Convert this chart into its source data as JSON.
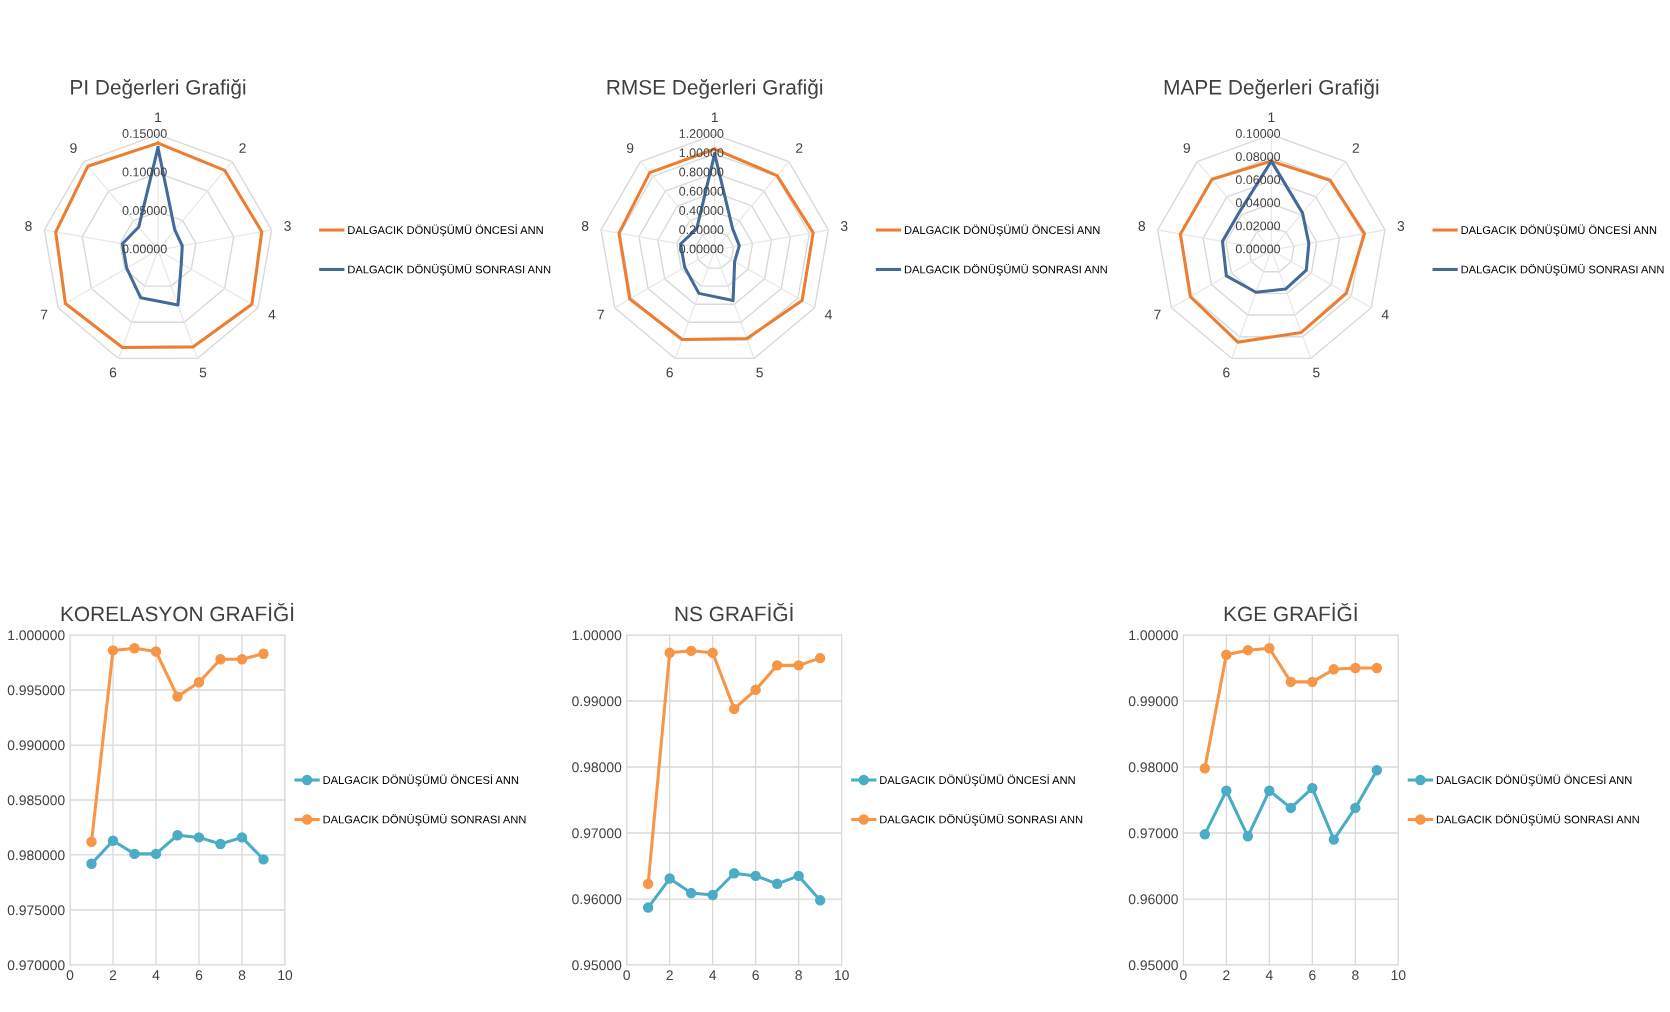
{
  "chart_data": [
    {
      "type": "radar",
      "title": "PI Değerleri Grafiği",
      "categories": [
        "1",
        "2",
        "3",
        "4",
        "5",
        "6",
        "7",
        "8",
        "9"
      ],
      "ylim": [
        0,
        0.15
      ],
      "yticks": [
        {
          "value": 0,
          "label": "0.00000"
        },
        {
          "value": 0.05,
          "label": "0.05000"
        },
        {
          "value": 0.1,
          "label": "0.10000"
        },
        {
          "value": 0.15,
          "label": "0.15000"
        }
      ],
      "legend": "right",
      "series": [
        {
          "name": "DALGACIK DÖNÜŞÜMÜ ÖNCESİ ANN",
          "color": "#ed7d31",
          "values": [
            0.139,
            0.135,
            0.137,
            0.141,
            0.134,
            0.135,
            0.139,
            0.135,
            0.142
          ]
        },
        {
          "name": "DALGACIK DÖNÜŞÜMÜ SONRASI ANN",
          "color": "#44699b",
          "values": [
            0.133,
            0.034,
            0.032,
            0.035,
            0.076,
            0.066,
            0.047,
            0.047,
            0.039
          ]
        }
      ]
    },
    {
      "type": "radar",
      "title": "RMSE Değerleri Grafiği",
      "categories": [
        "1",
        "2",
        "3",
        "4",
        "5",
        "6",
        "7",
        "8",
        "9"
      ],
      "ylim": [
        0,
        1.2
      ],
      "yticks": [
        {
          "value": 0,
          "label": "0.00000"
        },
        {
          "value": 0.2,
          "label": "0.20000"
        },
        {
          "value": 0.4,
          "label": "0.40000"
        },
        {
          "value": 0.6,
          "label": "0.60000"
        },
        {
          "value": 0.8,
          "label": "0.80000"
        },
        {
          "value": 1.0,
          "label": "1.00000"
        },
        {
          "value": 1.2,
          "label": "1.20000"
        }
      ],
      "legend": "right",
      "series": [
        {
          "name": "DALGACIK DÖNÜŞÜMÜ ÖNCESİ ANN",
          "color": "#ed7d31",
          "values": [
            1.05,
            1.01,
            1.04,
            1.05,
            0.98,
            0.99,
            1.02,
            1.01,
            1.05
          ]
        },
        {
          "name": "DALGACIK DÖNÜŞÜMÜ SONRASI ANN",
          "color": "#44699b",
          "values": [
            1.0,
            0.29,
            0.26,
            0.24,
            0.56,
            0.48,
            0.36,
            0.36,
            0.29
          ]
        }
      ]
    },
    {
      "type": "radar",
      "title": "MAPE Değerleri Grafiği",
      "categories": [
        "1",
        "2",
        "3",
        "4",
        "5",
        "6",
        "7",
        "8",
        "9"
      ],
      "ylim": [
        0,
        0.1
      ],
      "yticks": [
        {
          "value": 0,
          "label": "0.00000"
        },
        {
          "value": 0.02,
          "label": "0.02000"
        },
        {
          "value": 0.04,
          "label": "0.04000"
        },
        {
          "value": 0.06,
          "label": "0.06000"
        },
        {
          "value": 0.08,
          "label": "0.08000"
        },
        {
          "value": 0.1,
          "label": "0.10000"
        }
      ],
      "legend": "right",
      "series": [
        {
          "name": "DALGACIK DÖNÜŞÜMÜ ÖNCESİ ANN",
          "color": "#ed7d31",
          "values": [
            0.077,
            0.079,
            0.082,
            0.075,
            0.076,
            0.085,
            0.081,
            0.08,
            0.08
          ]
        },
        {
          "name": "DALGACIK DÖNÜŞÜMÜ SONRASI ANN",
          "color": "#44699b",
          "values": [
            0.077,
            0.042,
            0.033,
            0.035,
            0.036,
            0.039,
            0.045,
            0.043,
            0.043
          ]
        }
      ]
    },
    {
      "type": "line",
      "title": "KORELASYON GRAFİĞİ",
      "x": [
        1,
        2,
        3,
        4,
        5,
        6,
        7,
        8,
        9
      ],
      "xlim": [
        0,
        10
      ],
      "xticks": [
        0,
        2,
        4,
        6,
        8,
        10
      ],
      "ylim": [
        0.97,
        1.0
      ],
      "yticks": [
        {
          "value": 0.97,
          "label": "0.970000"
        },
        {
          "value": 0.975,
          "label": "0.975000"
        },
        {
          "value": 0.98,
          "label": "0.980000"
        },
        {
          "value": 0.985,
          "label": "0.985000"
        },
        {
          "value": 0.99,
          "label": "0.990000"
        },
        {
          "value": 0.995,
          "label": "0.995000"
        },
        {
          "value": 1.0,
          "label": "1.000000"
        }
      ],
      "grid": true,
      "marker": "circle",
      "legend": "right",
      "series": [
        {
          "name": "DALGACIK DÖNÜŞÜMÜ ÖNCESİ ANN",
          "color": "#4bacc6",
          "values": [
            0.9792,
            0.9813,
            0.9801,
            0.9801,
            0.9818,
            0.9816,
            0.981,
            0.9816,
            0.9796
          ]
        },
        {
          "name": "DALGACIK DÖNÜŞÜMÜ SONRASI ANN",
          "color": "#f79646",
          "values": [
            0.9812,
            0.9986,
            0.9988,
            0.9985,
            0.9944,
            0.9957,
            0.9978,
            0.9978,
            0.9983
          ]
        }
      ]
    },
    {
      "type": "line",
      "title": "NS GRAFİĞİ",
      "x": [
        1,
        2,
        3,
        4,
        5,
        6,
        7,
        8,
        9
      ],
      "xlim": [
        0,
        10
      ],
      "xticks": [
        0,
        2,
        4,
        6,
        8,
        10
      ],
      "ylim": [
        0.95,
        1.0
      ],
      "yticks": [
        {
          "value": 0.95,
          "label": "0.95000"
        },
        {
          "value": 0.96,
          "label": "0.96000"
        },
        {
          "value": 0.97,
          "label": "0.97000"
        },
        {
          "value": 0.98,
          "label": "0.98000"
        },
        {
          "value": 0.99,
          "label": "0.99000"
        },
        {
          "value": 1.0,
          "label": "1.00000"
        }
      ],
      "grid": true,
      "marker": "circle",
      "legend": "right",
      "series": [
        {
          "name": "DALGACIK DÖNÜŞÜMÜ ÖNCESİ ANN",
          "color": "#4bacc6",
          "values": [
            0.9587,
            0.9631,
            0.9609,
            0.9606,
            0.9639,
            0.9635,
            0.9623,
            0.9635,
            0.9598
          ]
        },
        {
          "name": "DALGACIK DÖNÜŞÜMÜ SONRASI ANN",
          "color": "#f79646",
          "values": [
            0.9623,
            0.9973,
            0.9976,
            0.9973,
            0.9888,
            0.9917,
            0.9954,
            0.9954,
            0.9965
          ]
        }
      ]
    },
    {
      "type": "line",
      "title": "KGE GRAFİĞİ",
      "x": [
        1,
        2,
        3,
        4,
        5,
        6,
        7,
        8,
        9
      ],
      "xlim": [
        0,
        10
      ],
      "xticks": [
        0,
        2,
        4,
        6,
        8,
        10
      ],
      "ylim": [
        0.95,
        1.0
      ],
      "yticks": [
        {
          "value": 0.95,
          "label": "0.95000"
        },
        {
          "value": 0.96,
          "label": "0.96000"
        },
        {
          "value": 0.97,
          "label": "0.97000"
        },
        {
          "value": 0.98,
          "label": "0.98000"
        },
        {
          "value": 0.99,
          "label": "0.99000"
        },
        {
          "value": 1.0,
          "label": "1.00000"
        }
      ],
      "grid": true,
      "marker": "circle",
      "legend": "right",
      "series": [
        {
          "name": "DALGACIK DÖNÜŞÜMÜ ÖNCESİ ANN",
          "color": "#4bacc6",
          "values": [
            0.9698,
            0.9764,
            0.9695,
            0.9764,
            0.9738,
            0.9768,
            0.969,
            0.9738,
            0.9795
          ]
        },
        {
          "name": "DALGACIK DÖNÜŞÜMÜ SONRASI ANN",
          "color": "#f79646",
          "values": [
            0.9798,
            0.997,
            0.9977,
            0.998,
            0.9929,
            0.9929,
            0.9948,
            0.995,
            0.995
          ]
        }
      ]
    }
  ]
}
